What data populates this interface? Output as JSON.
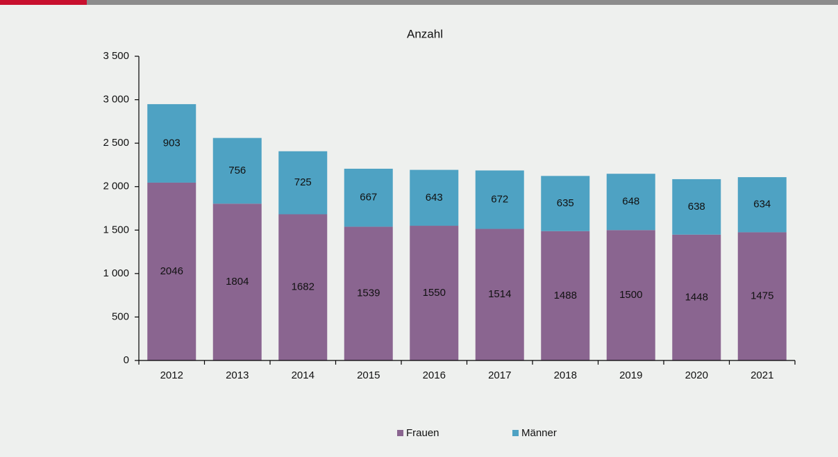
{
  "chart_data": {
    "type": "stacked-bar",
    "title": "Anzahl",
    "categories": [
      "2012",
      "2013",
      "2014",
      "2015",
      "2016",
      "2017",
      "2018",
      "2019",
      "2020",
      "2021"
    ],
    "series": [
      {
        "name": "Frauen",
        "color": "#8a6590",
        "values": [
          2046,
          1804,
          1682,
          1539,
          1550,
          1514,
          1488,
          1500,
          1448,
          1475
        ]
      },
      {
        "name": "Männer",
        "color": "#4ea2c3",
        "values": [
          903,
          756,
          725,
          667,
          643,
          672,
          635,
          648,
          638,
          634
        ]
      }
    ],
    "ylim": [
      0,
      3500
    ],
    "yticks": [
      0,
      500,
      {
        "value": 1000,
        "label": "1 000"
      },
      {
        "value": 1500,
        "label": "1 500"
      },
      {
        "value": 2000,
        "label": "2 000"
      },
      {
        "value": 2500,
        "label": "2 500"
      },
      {
        "value": 3000,
        "label": "3 000"
      },
      {
        "value": 3500,
        "label": "3 500"
      }
    ],
    "legend": "bottom"
  }
}
